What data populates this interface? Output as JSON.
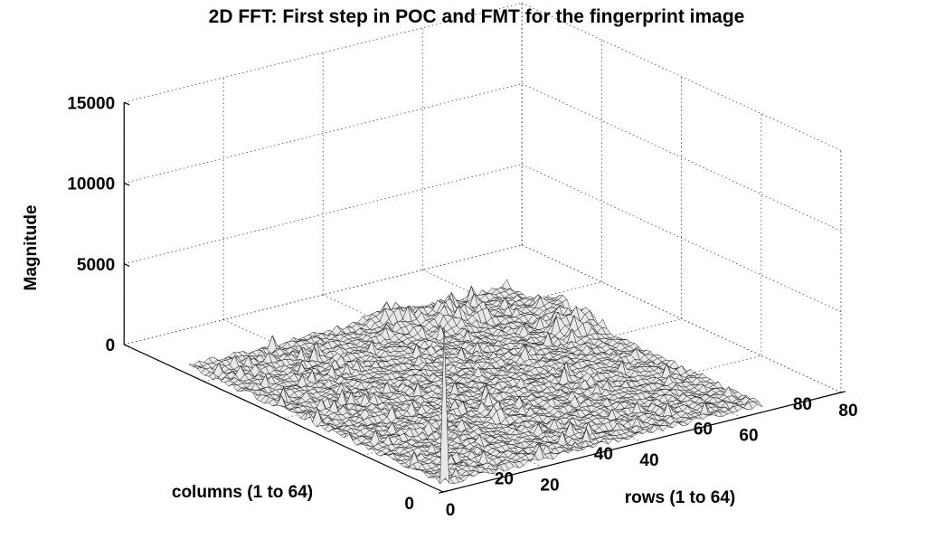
{
  "chart_data": {
    "type": "surface",
    "title": "2D FFT: First step in POC and FMT for the fingerprint image",
    "xlabel": "rows (1 to 64)",
    "ylabel": "columns (1 to 64)",
    "zlabel": "Magnitude",
    "xlim": [
      0,
      80
    ],
    "ylim": [
      0,
      80
    ],
    "zlim": [
      0,
      15000
    ],
    "xticks": [
      0,
      20,
      40,
      60,
      80
    ],
    "yticks": [
      0,
      20,
      40,
      60,
      80
    ],
    "zticks": [
      0,
      5000,
      10000,
      15000
    ],
    "grid": true,
    "grid_size": [
      64,
      64
    ],
    "background_magnitude": 400,
    "peak": {
      "row": 1,
      "col": 1,
      "magnitude": 10000
    },
    "secondary_peaks": [
      {
        "row": 48,
        "col": 58,
        "magnitude": 1200
      },
      {
        "row": 62,
        "col": 44,
        "magnitude": 1100
      },
      {
        "row": 40,
        "col": 62,
        "magnitude": 900
      },
      {
        "row": 64,
        "col": 52,
        "magnitude": 800
      }
    ]
  }
}
